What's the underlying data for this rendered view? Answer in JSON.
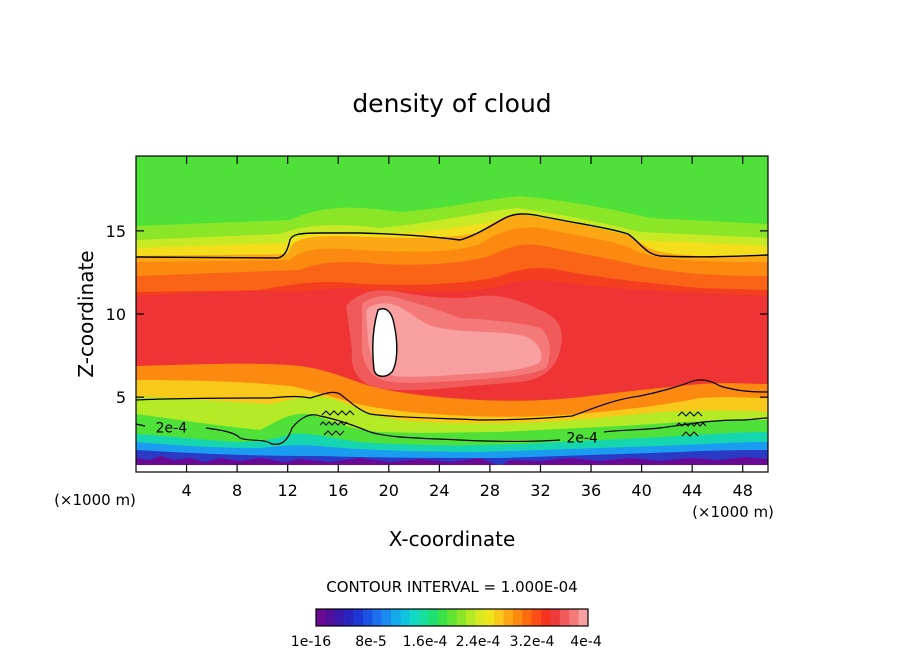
{
  "chart_data": {
    "type": "heatmap",
    "subtype": "filled contour",
    "title": "density of cloud",
    "xlabel": "X-coordinate",
    "ylabel": "Z-coordinate",
    "x_unit": "(×1000 m)",
    "x_unit_right": "(×1000 m)",
    "xlim": [
      0,
      50
    ],
    "ylim": [
      0.5,
      19.5
    ],
    "xticks": [
      4,
      8,
      12,
      16,
      20,
      24,
      28,
      32,
      36,
      40,
      44,
      48
    ],
    "yticks": [
      5,
      10,
      15
    ],
    "contour_interval_text": "CONTOUR INTERVAL = 1.000E-04",
    "line_labels": [
      {
        "text": "2e-4",
        "x": 2.8,
        "z": 3.0
      },
      {
        "text": "2e-4",
        "x": 35.3,
        "z": 2.4
      }
    ],
    "colorbar": {
      "colors": [
        "#6a0a94",
        "#52109a",
        "#3a18aa",
        "#2a24be",
        "#1e36d2",
        "#1c52e4",
        "#1e6ef0",
        "#1a8cf0",
        "#12aaea",
        "#10c4e0",
        "#12d8c4",
        "#16e09c",
        "#1ee070",
        "#3ae24a",
        "#62e432",
        "#8ce628",
        "#b4ea26",
        "#d8ea22",
        "#eee41e",
        "#f8c81a",
        "#fca814",
        "#fc8a10",
        "#fc6a10",
        "#fa4c14",
        "#f4341e",
        "#ee3a3a",
        "#f05a5a",
        "#f47a7a",
        "#f8a0a0"
      ],
      "tick_labels": [
        "1e-16",
        "8e-5",
        "1.6e-4",
        "2.4e-4",
        "3.2e-4",
        "4e-4"
      ]
    },
    "features": [
      {
        "name": "max density core (white)",
        "x_range": [
          18.9,
          21.2
        ],
        "z_range": [
          6.0,
          10.3
        ]
      },
      {
        "name": "high density region",
        "x_range": [
          13,
          41
        ],
        "z_range": [
          4,
          12
        ]
      }
    ]
  }
}
